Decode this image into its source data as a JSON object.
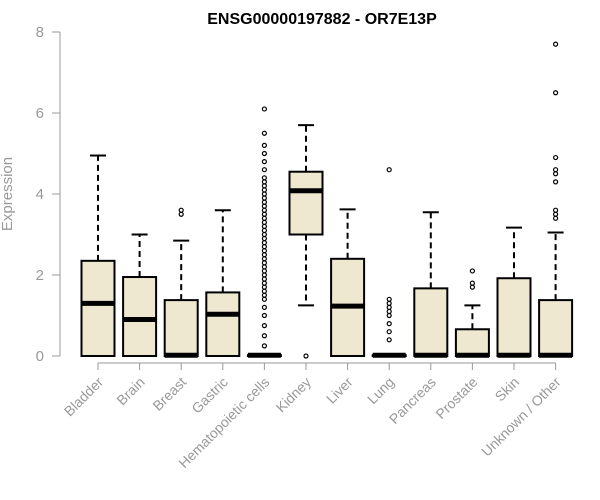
{
  "chart_data": {
    "type": "boxplot",
    "title": "ENSG00000197882 - OR7E13P",
    "xlabel": "",
    "ylabel": "Expression",
    "ylim": [
      0,
      8
    ],
    "yticks": [
      0,
      2,
      4,
      6,
      8
    ],
    "box_fill": "#efe8d0",
    "series": [
      {
        "name": "Bladder",
        "q1": 0,
        "median": 1.3,
        "q3": 2.35,
        "whisker_low": 0,
        "whisker_high": 4.95,
        "outliers": []
      },
      {
        "name": "Brain",
        "q1": 0,
        "median": 0.9,
        "q3": 1.95,
        "whisker_low": 0,
        "whisker_high": 3.0,
        "outliers": []
      },
      {
        "name": "Breast",
        "q1": 0,
        "median": 0.02,
        "q3": 1.38,
        "whisker_low": 0,
        "whisker_high": 2.85,
        "outliers": [
          3.5,
          3.6
        ]
      },
      {
        "name": "Gastric",
        "q1": 0,
        "median": 1.03,
        "q3": 1.57,
        "whisker_low": 0,
        "whisker_high": 3.6,
        "outliers": []
      },
      {
        "name": "Hematopoietic cells",
        "q1": 0,
        "median": 0.02,
        "q3": 0.02,
        "whisker_low": 0,
        "whisker_high": 0.02,
        "outliers": [
          0.25,
          0.5,
          0.75,
          1.0,
          1.2,
          1.4,
          1.5,
          1.6,
          1.7,
          1.8,
          1.9,
          2.0,
          2.1,
          2.2,
          2.3,
          2.4,
          2.5,
          2.6,
          2.7,
          2.8,
          2.9,
          3.0,
          3.1,
          3.2,
          3.3,
          3.4,
          3.5,
          3.6,
          3.7,
          3.8,
          3.9,
          4.0,
          4.1,
          4.2,
          4.3,
          4.4,
          4.6,
          4.8,
          5.0,
          5.2,
          5.5,
          6.1
        ]
      },
      {
        "name": "Kidney",
        "q1": 3.0,
        "median": 4.08,
        "q3": 4.55,
        "whisker_low": 1.25,
        "whisker_high": 5.7,
        "outliers": [
          0
        ]
      },
      {
        "name": "Liver",
        "q1": 0,
        "median": 1.23,
        "q3": 2.4,
        "whisker_low": 0,
        "whisker_high": 3.62,
        "outliers": []
      },
      {
        "name": "Lung",
        "q1": 0,
        "median": 0.02,
        "q3": 0.02,
        "whisker_low": 0,
        "whisker_high": 0.02,
        "outliers": [
          0.4,
          0.6,
          0.8,
          1.0,
          1.1,
          1.2,
          1.3,
          1.4,
          4.6
        ]
      },
      {
        "name": "Pancreas",
        "q1": 0,
        "median": 0.02,
        "q3": 1.67,
        "whisker_low": 0,
        "whisker_high": 3.55,
        "outliers": []
      },
      {
        "name": "Prostate",
        "q1": 0,
        "median": 0.02,
        "q3": 0.66,
        "whisker_low": 0,
        "whisker_high": 1.25,
        "outliers": [
          1.7,
          1.8,
          2.1
        ]
      },
      {
        "name": "Skin",
        "q1": 0,
        "median": 0.02,
        "q3": 1.92,
        "whisker_low": 0,
        "whisker_high": 3.17,
        "outliers": []
      },
      {
        "name": "Unknown / Other",
        "q1": 0,
        "median": 0.02,
        "q3": 1.38,
        "whisker_low": 0,
        "whisker_high": 3.05,
        "outliers": [
          3.4,
          3.5,
          3.6,
          4.3,
          4.5,
          4.6,
          4.9,
          6.5,
          7.7
        ]
      }
    ]
  }
}
